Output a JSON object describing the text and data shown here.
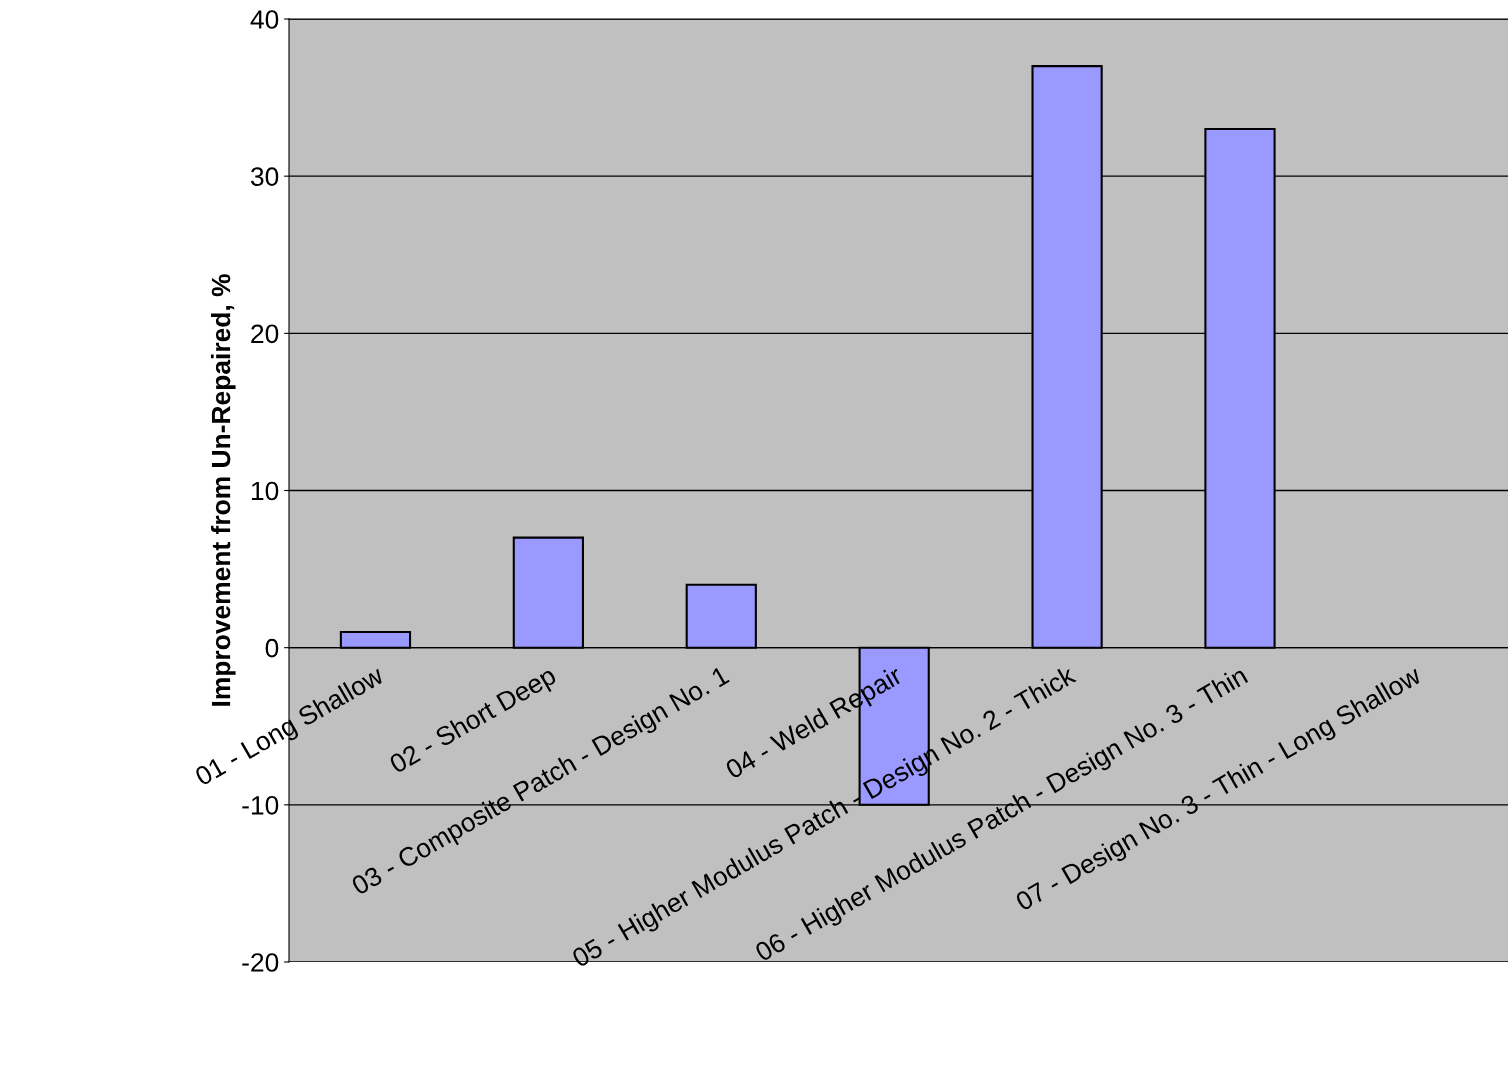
{
  "chart_data": {
    "type": "bar",
    "ylabel": "Improvement from Un-Repaired, %",
    "categories": [
      "01 - Long Shallow",
      "02 - Short Deep",
      "03 - Composite Patch - Design No. 1",
      "04 - Weld Repair",
      "05 - Higher Modulus Patch - Design No. 2 - Thick",
      "06 - Higher Modulus Patch - Design No. 3 - Thin",
      "07 - Design No. 3 - Thin - Long Shallow"
    ],
    "values": [
      1,
      7,
      4,
      -10,
      37,
      33,
      null
    ],
    "color": "#9999ff",
    "ylim": [
      -20,
      40
    ],
    "yticks": [
      -20,
      -10,
      0,
      10,
      20,
      30,
      40
    ],
    "grid": "y"
  }
}
